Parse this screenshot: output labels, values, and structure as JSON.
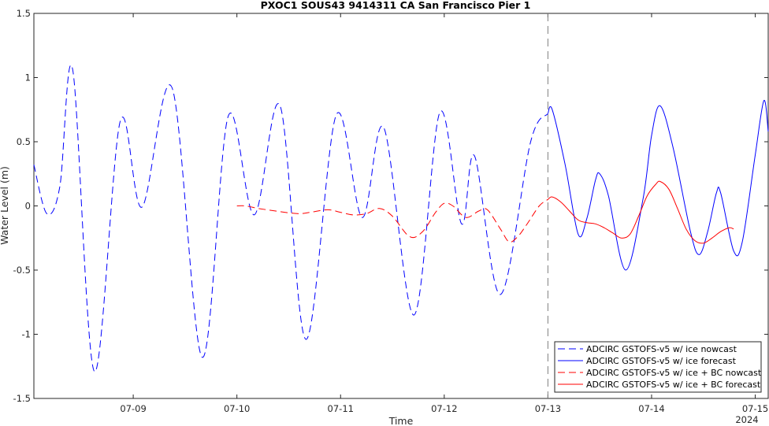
{
  "chart_data": {
    "type": "line",
    "title": "PXOC1 SOUS43 9414311 CA San Francisco Pier 1",
    "xlabel": "Time",
    "ylabel": "Water Level (m)",
    "x_unit": "days",
    "xlim": [
      "2024-07-08 01:00",
      "2024-07-15 03:00"
    ],
    "ylim": [
      -1.5,
      1.5
    ],
    "x_ticks": [
      {
        "x": "2024-07-09 00:00",
        "label": "07-09"
      },
      {
        "x": "2024-07-10 00:00",
        "label": "07-10"
      },
      {
        "x": "2024-07-11 00:00",
        "label": "07-11"
      },
      {
        "x": "2024-07-12 00:00",
        "label": "07-12"
      },
      {
        "x": "2024-07-13 00:00",
        "label": "07-13"
      },
      {
        "x": "2024-07-14 00:00",
        "label": "07-14"
      },
      {
        "x": "2024-07-15 00:00",
        "label": "07-15"
      }
    ],
    "x_year_label": "2024",
    "y_ticks": [
      {
        "y": 1.5,
        "label": "1.5"
      },
      {
        "y": 1,
        "label": "1"
      },
      {
        "y": 0.5,
        "label": "0.5"
      },
      {
        "y": 0,
        "label": "0"
      },
      {
        "y": -0.5,
        "label": "-0.5"
      },
      {
        "y": -1,
        "label": "-1"
      },
      {
        "y": -1.5,
        "label": "-1.5"
      }
    ],
    "grid": false,
    "legend_position": "bottom-right",
    "vertical_marker": {
      "x": "2024-07-13 00:00",
      "style": "dashed",
      "color": "#808080"
    },
    "series": [
      {
        "name": "ADCIRC GSTOFS-v5 w/ ice nowcast",
        "color": "#0000ff",
        "dashed": true,
        "points": [
          [
            "2024-07-08 01:00",
            0.32
          ],
          [
            "2024-07-08 04:00",
            -0.06
          ],
          [
            "2024-07-08 07:00",
            0.15
          ],
          [
            "2024-07-08 10:00",
            1.06
          ],
          [
            "2024-07-08 15:00",
            -1.29
          ],
          [
            "2024-07-08 21:00",
            0.66
          ],
          [
            "2024-07-09 02:00",
            -0.01
          ],
          [
            "2024-07-09 09:00",
            0.92
          ],
          [
            "2024-07-09 16:00",
            -1.18
          ],
          [
            "2024-07-09 22:00",
            0.7
          ],
          [
            "2024-07-10 04:00",
            -0.07
          ],
          [
            "2024-07-10 10:00",
            0.78
          ],
          [
            "2024-07-10 16:00",
            -1.04
          ],
          [
            "2024-07-10 23:00",
            0.71
          ],
          [
            "2024-07-11 05:00",
            -0.09
          ],
          [
            "2024-07-11 10:00",
            0.61
          ],
          [
            "2024-07-11 17:00",
            -0.85
          ],
          [
            "2024-07-11 23:00",
            0.73
          ],
          [
            "2024-07-12 04:00",
            -0.14
          ],
          [
            "2024-07-12 07:00",
            0.39
          ],
          [
            "2024-07-12 13:00",
            -0.69
          ],
          [
            "2024-07-12 20:00",
            0.5
          ],
          [
            "2024-07-13 00:00",
            0.72
          ]
        ]
      },
      {
        "name": "ADCIRC GSTOFS-v5 w/ ice forecast",
        "color": "#0000ff",
        "dashed": false,
        "points": [
          [
            "2024-07-13 00:00",
            0.72
          ],
          [
            "2024-07-13 01:00",
            0.75
          ],
          [
            "2024-07-13 04:00",
            0.32
          ],
          [
            "2024-07-13 07:00",
            -0.22
          ],
          [
            "2024-07-13 09:00",
            -0.1
          ],
          [
            "2024-07-13 11:00",
            0.2
          ],
          [
            "2024-07-13 12:00",
            0.25
          ],
          [
            "2024-07-13 14:00",
            0.08
          ],
          [
            "2024-07-13 18:00",
            -0.5
          ],
          [
            "2024-07-13 22:00",
            0.05
          ],
          [
            "2024-07-14 00:00",
            0.55
          ],
          [
            "2024-07-14 02:00",
            0.78
          ],
          [
            "2024-07-14 05:00",
            0.45
          ],
          [
            "2024-07-14 09:00",
            -0.2
          ],
          [
            "2024-07-14 11:00",
            -0.38
          ],
          [
            "2024-07-14 13:00",
            -0.2
          ],
          [
            "2024-07-14 15:00",
            0.1
          ],
          [
            "2024-07-14 16:00",
            0.1
          ],
          [
            "2024-07-14 19:00",
            -0.35
          ],
          [
            "2024-07-14 21:00",
            -0.28
          ],
          [
            "2024-07-15 00:00",
            0.4
          ],
          [
            "2024-07-15 02:00",
            0.82
          ],
          [
            "2024-07-15 03:00",
            0.58
          ]
        ]
      },
      {
        "name": "ADCIRC GSTOFS-v5 w/ ice + BC nowcast",
        "color": "#ff0000",
        "dashed": true,
        "points": [
          [
            "2024-07-10 00:00",
            0.0
          ],
          [
            "2024-07-10 02:00",
            0.0
          ],
          [
            "2024-07-10 05:00",
            -0.02
          ],
          [
            "2024-07-10 09:00",
            -0.04
          ],
          [
            "2024-07-10 14:00",
            -0.06
          ],
          [
            "2024-07-10 17:00",
            -0.05
          ],
          [
            "2024-07-10 21:00",
            -0.03
          ],
          [
            "2024-07-11 00:00",
            -0.05
          ],
          [
            "2024-07-11 03:00",
            -0.07
          ],
          [
            "2024-07-11 06:00",
            -0.06
          ],
          [
            "2024-07-11 09:00",
            -0.02
          ],
          [
            "2024-07-11 12:00",
            -0.08
          ],
          [
            "2024-07-11 16:00",
            -0.24
          ],
          [
            "2024-07-11 19:00",
            -0.2
          ],
          [
            "2024-07-11 22:00",
            -0.05
          ],
          [
            "2024-07-12 00:00",
            0.02
          ],
          [
            "2024-07-12 02:00",
            0.0
          ],
          [
            "2024-07-12 05:00",
            -0.09
          ],
          [
            "2024-07-12 08:00",
            -0.04
          ],
          [
            "2024-07-12 10:00",
            -0.03
          ],
          [
            "2024-07-12 13:00",
            -0.18
          ],
          [
            "2024-07-12 15:00",
            -0.28
          ],
          [
            "2024-07-12 17:00",
            -0.24
          ],
          [
            "2024-07-12 19:00",
            -0.15
          ],
          [
            "2024-07-12 22:00",
            0.0
          ],
          [
            "2024-07-13 00:00",
            0.05
          ]
        ]
      },
      {
        "name": "ADCIRC GSTOFS-v5 w/ ice + BC forecast",
        "color": "#ff0000",
        "dashed": false,
        "points": [
          [
            "2024-07-13 00:00",
            0.05
          ],
          [
            "2024-07-13 01:00",
            0.07
          ],
          [
            "2024-07-13 03:00",
            0.03
          ],
          [
            "2024-07-13 05:00",
            -0.04
          ],
          [
            "2024-07-13 07:00",
            -0.11
          ],
          [
            "2024-07-13 09:00",
            -0.13
          ],
          [
            "2024-07-13 11:00",
            -0.14
          ],
          [
            "2024-07-13 13:00",
            -0.17
          ],
          [
            "2024-07-13 15:00",
            -0.21
          ],
          [
            "2024-07-13 17:00",
            -0.25
          ],
          [
            "2024-07-13 19:00",
            -0.22
          ],
          [
            "2024-07-13 21:00",
            -0.08
          ],
          [
            "2024-07-13 23:00",
            0.08
          ],
          [
            "2024-07-14 01:00",
            0.17
          ],
          [
            "2024-07-14 02:00",
            0.19
          ],
          [
            "2024-07-14 04:00",
            0.13
          ],
          [
            "2024-07-14 06:00",
            -0.02
          ],
          [
            "2024-07-14 08:00",
            -0.18
          ],
          [
            "2024-07-14 10:00",
            -0.27
          ],
          [
            "2024-07-14 12:00",
            -0.29
          ],
          [
            "2024-07-14 14:00",
            -0.25
          ],
          [
            "2024-07-14 16:00",
            -0.2
          ],
          [
            "2024-07-14 18:00",
            -0.17
          ],
          [
            "2024-07-14 19:00",
            -0.18
          ]
        ]
      }
    ]
  }
}
